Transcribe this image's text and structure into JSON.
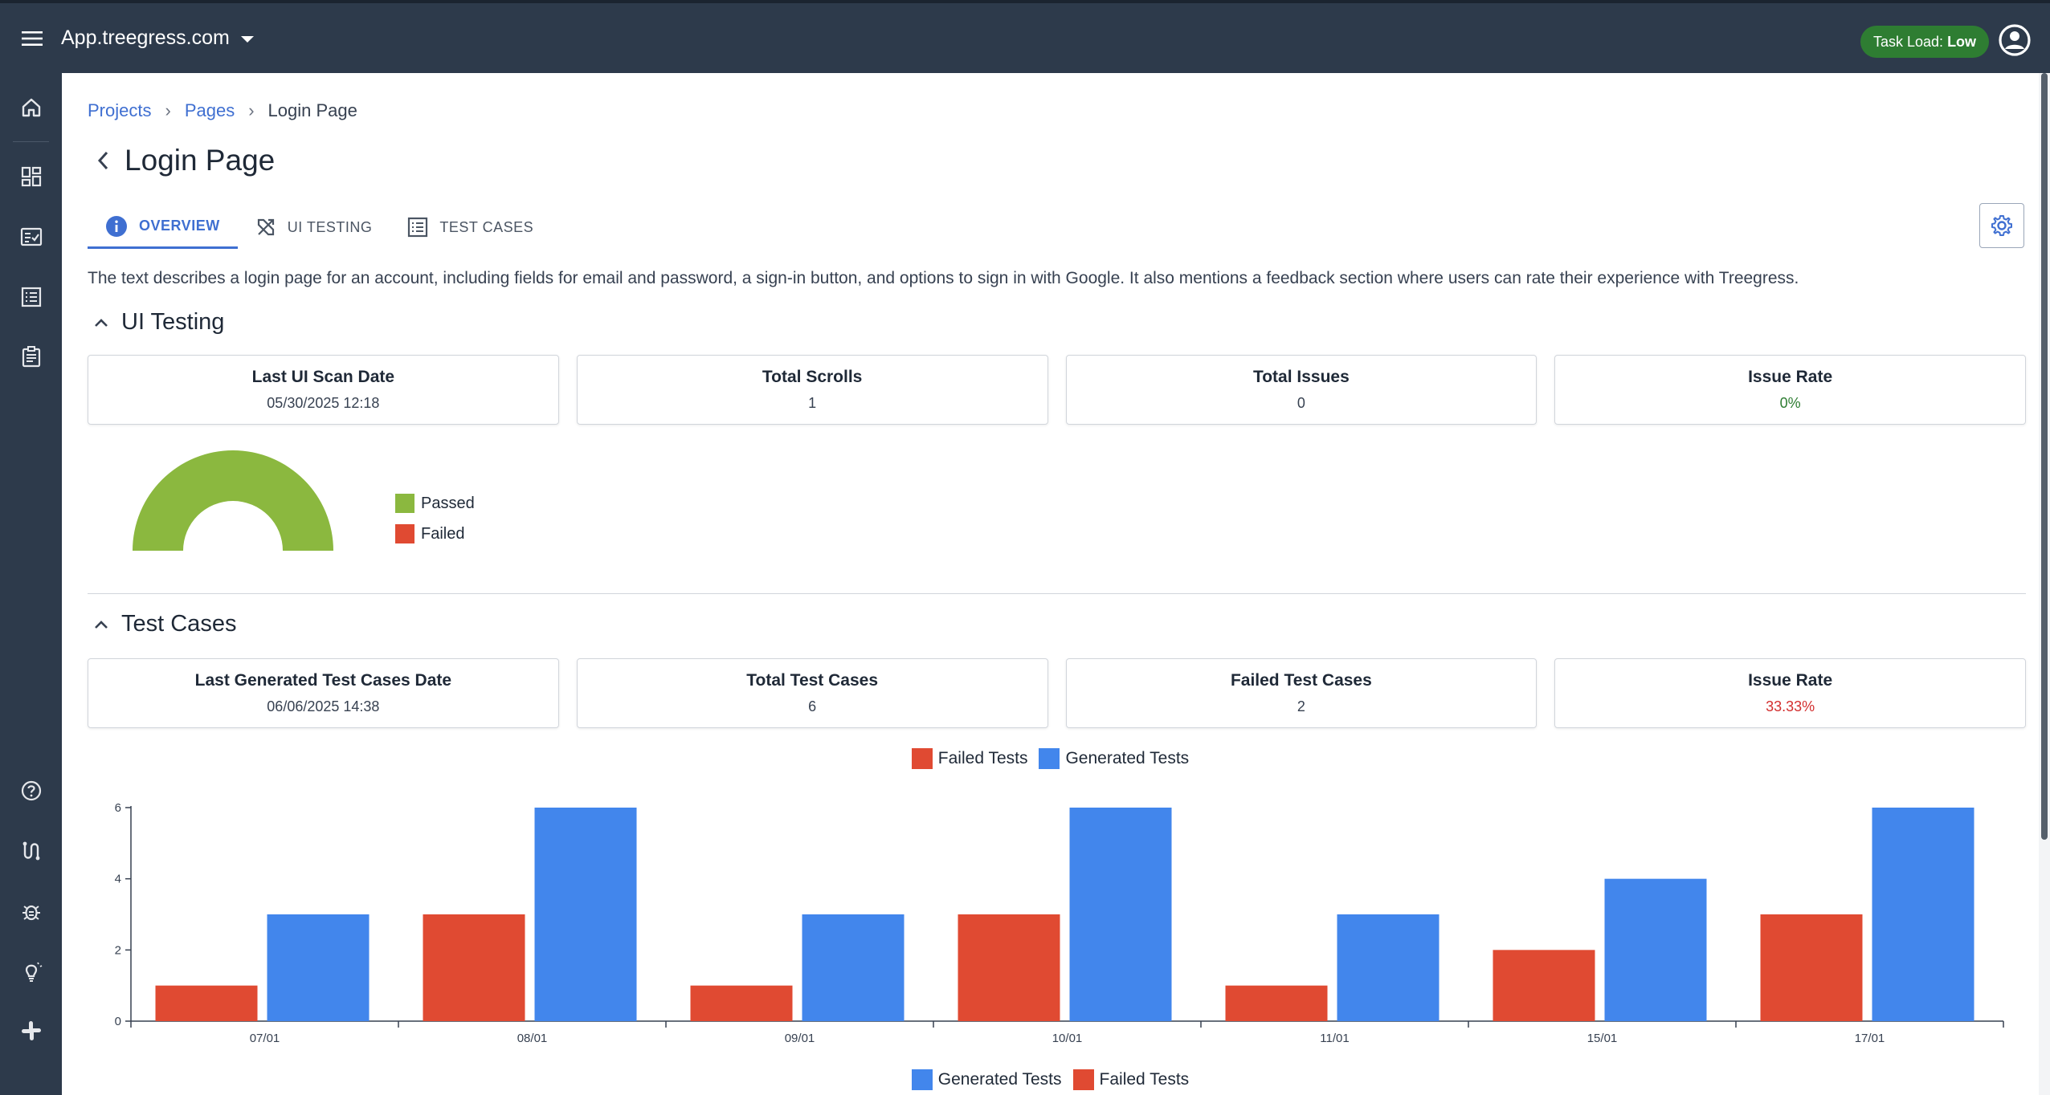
{
  "topbar": {
    "app_name": "App.treegress.com",
    "task_load_label": "Task Load:",
    "task_load_value": "Low"
  },
  "breadcrumb": {
    "items": [
      "Projects",
      "Pages"
    ],
    "current": "Login Page"
  },
  "page": {
    "title": "Login Page",
    "tabs": [
      {
        "label": "OVERVIEW",
        "icon": "info-icon",
        "active": true
      },
      {
        "label": "UI TESTING",
        "icon": "design-tools-icon",
        "active": false
      },
      {
        "label": "TEST CASES",
        "icon": "list-icon",
        "active": false
      }
    ],
    "description": "The text describes a login page for an account, including fields for email and password, a sign-in button, and options to sign in with Google. It also mentions a feedback section where users can rate their experience with Treegress."
  },
  "ui_testing": {
    "title": "UI Testing",
    "cards": [
      {
        "label": "Last UI Scan Date",
        "value": "05/30/2025 12:18"
      },
      {
        "label": "Total Scrolls",
        "value": "1"
      },
      {
        "label": "Total Issues",
        "value": "0"
      },
      {
        "label": "Issue Rate",
        "value": "0%"
      }
    ],
    "legend": [
      {
        "label": "Passed",
        "color": "#8bb83f"
      },
      {
        "label": "Failed",
        "color": "#e04a32"
      }
    ]
  },
  "test_cases": {
    "title": "Test Cases",
    "cards": [
      {
        "label": "Last Generated Test Cases Date",
        "value": "06/06/2025 14:38"
      },
      {
        "label": "Total Test Cases",
        "value": "6"
      },
      {
        "label": "Failed Test Cases",
        "value": "2"
      },
      {
        "label": "Issue Rate",
        "value": "33.33%"
      }
    ],
    "legend_top": [
      "Failed Tests",
      "Generated Tests"
    ],
    "legend_bottom": [
      "Generated Tests",
      "Failed Tests"
    ]
  },
  "colors": {
    "failed": "#e04a32",
    "generated": "#4286ec",
    "passed": "#8bb83f",
    "accent": "#3f6fd1"
  },
  "chart_data": [
    {
      "type": "pie",
      "categories": [
        "Passed",
        "Failed"
      ],
      "values": [
        100,
        0
      ]
    },
    {
      "type": "bar",
      "categories": [
        "07/01",
        "08/01",
        "09/01",
        "10/01",
        "11/01",
        "15/01",
        "17/01"
      ],
      "series": [
        {
          "name": "Failed Tests",
          "values": [
            1,
            3,
            1,
            3,
            1,
            2,
            3
          ]
        },
        {
          "name": "Generated Tests",
          "values": [
            3,
            6,
            3,
            6,
            3,
            4,
            6
          ]
        }
      ],
      "ylim": [
        0,
        6
      ],
      "yticks": [
        0,
        2,
        4,
        6
      ],
      "legend": "top"
    }
  ]
}
